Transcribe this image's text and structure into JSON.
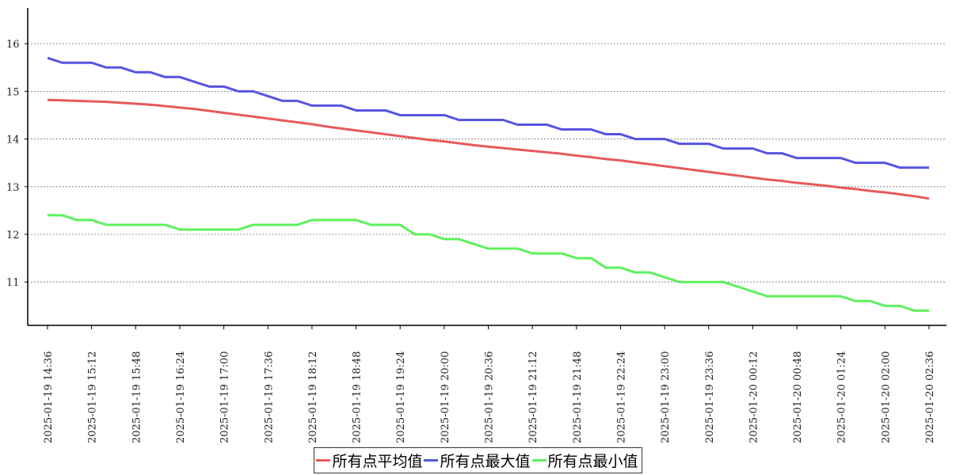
{
  "chart_data": {
    "type": "line",
    "x": [
      "2025-01-19 14:36",
      "2025-01-19 14:48",
      "2025-01-19 15:00",
      "2025-01-19 15:12",
      "2025-01-19 15:24",
      "2025-01-19 15:36",
      "2025-01-19 15:48",
      "2025-01-19 16:00",
      "2025-01-19 16:12",
      "2025-01-19 16:24",
      "2025-01-19 16:36",
      "2025-01-19 16:48",
      "2025-01-19 17:00",
      "2025-01-19 17:12",
      "2025-01-19 17:24",
      "2025-01-19 17:36",
      "2025-01-19 17:48",
      "2025-01-19 18:00",
      "2025-01-19 18:12",
      "2025-01-19 18:24",
      "2025-01-19 18:36",
      "2025-01-19 18:48",
      "2025-01-19 19:00",
      "2025-01-19 19:12",
      "2025-01-19 19:24",
      "2025-01-19 19:36",
      "2025-01-19 19:48",
      "2025-01-19 20:00",
      "2025-01-19 20:12",
      "2025-01-19 20:24",
      "2025-01-19 20:36",
      "2025-01-19 20:48",
      "2025-01-19 21:00",
      "2025-01-19 21:12",
      "2025-01-19 21:24",
      "2025-01-19 21:36",
      "2025-01-19 21:48",
      "2025-01-19 22:00",
      "2025-01-19 22:12",
      "2025-01-19 22:24",
      "2025-01-19 22:36",
      "2025-01-19 22:48",
      "2025-01-19 23:00",
      "2025-01-19 23:12",
      "2025-01-19 23:24",
      "2025-01-19 23:36",
      "2025-01-19 23:48",
      "2025-01-20 00:00",
      "2025-01-20 00:12",
      "2025-01-20 00:24",
      "2025-01-20 00:36",
      "2025-01-20 00:48",
      "2025-01-20 01:00",
      "2025-01-20 01:12",
      "2025-01-20 01:24",
      "2025-01-20 01:36",
      "2025-01-20 01:48",
      "2025-01-20 02:00",
      "2025-01-20 02:12",
      "2025-01-20 02:24",
      "2025-01-20 02:36"
    ],
    "series": [
      {
        "name": "所有点平均值",
        "color": "#e8595a",
        "values": [
          14.82,
          14.81,
          14.8,
          14.79,
          14.78,
          14.76,
          14.74,
          14.72,
          14.69,
          14.66,
          14.63,
          14.59,
          14.55,
          14.51,
          14.47,
          14.43,
          14.39,
          14.35,
          14.31,
          14.26,
          14.22,
          14.18,
          14.14,
          14.1,
          14.06,
          14.02,
          13.98,
          13.95,
          13.91,
          13.87,
          13.84,
          13.81,
          13.78,
          13.75,
          13.72,
          13.69,
          13.65,
          13.62,
          13.58,
          13.55,
          13.51,
          13.47,
          13.43,
          13.39,
          13.35,
          13.31,
          13.27,
          13.23,
          13.19,
          13.15,
          13.12,
          13.08,
          13.05,
          13.02,
          12.98,
          12.95,
          12.91,
          12.88,
          12.84,
          12.8,
          12.75
        ]
      },
      {
        "name": "所有点最大值",
        "color": "#5555e0",
        "values": [
          15.7,
          15.6,
          15.6,
          15.6,
          15.5,
          15.5,
          15.4,
          15.4,
          15.3,
          15.3,
          15.2,
          15.1,
          15.1,
          15.0,
          15.0,
          14.9,
          14.8,
          14.8,
          14.7,
          14.7,
          14.7,
          14.6,
          14.6,
          14.6,
          14.5,
          14.5,
          14.5,
          14.5,
          14.4,
          14.4,
          14.4,
          14.4,
          14.3,
          14.3,
          14.3,
          14.2,
          14.2,
          14.2,
          14.1,
          14.1,
          14.0,
          14.0,
          14.0,
          13.9,
          13.9,
          13.9,
          13.8,
          13.8,
          13.8,
          13.7,
          13.7,
          13.6,
          13.6,
          13.6,
          13.6,
          13.5,
          13.5,
          13.5,
          13.4,
          13.4,
          13.4
        ]
      },
      {
        "name": "所有点最小值",
        "color": "#5ef05e",
        "values": [
          12.4,
          12.4,
          12.3,
          12.3,
          12.2,
          12.2,
          12.2,
          12.2,
          12.2,
          12.1,
          12.1,
          12.1,
          12.1,
          12.1,
          12.2,
          12.2,
          12.2,
          12.2,
          12.3,
          12.3,
          12.3,
          12.3,
          12.2,
          12.2,
          12.2,
          12.0,
          12.0,
          11.9,
          11.9,
          11.8,
          11.7,
          11.7,
          11.7,
          11.6,
          11.6,
          11.6,
          11.5,
          11.5,
          11.3,
          11.3,
          11.2,
          11.2,
          11.1,
          11.0,
          11.0,
          11.0,
          11.0,
          10.9,
          10.8,
          10.7,
          10.7,
          10.7,
          10.7,
          10.7,
          10.7,
          10.6,
          10.6,
          10.5,
          10.5,
          10.4,
          10.4
        ]
      }
    ],
    "xlim": [
      "2025-01-19 14:36",
      "2025-01-20 02:36"
    ],
    "xticks": [
      "2025-01-19 14:36",
      "2025-01-19 15:12",
      "2025-01-19 15:48",
      "2025-01-19 16:24",
      "2025-01-19 17:00",
      "2025-01-19 17:36",
      "2025-01-19 18:12",
      "2025-01-19 18:48",
      "2025-01-19 19:24",
      "2025-01-19 20:00",
      "2025-01-19 20:36",
      "2025-01-19 21:12",
      "2025-01-19 21:48",
      "2025-01-19 22:24",
      "2025-01-19 23:00",
      "2025-01-19 23:36",
      "2025-01-20 00:12",
      "2025-01-20 00:48",
      "2025-01-20 01:24",
      "2025-01-20 02:00",
      "2025-01-20 02:36"
    ],
    "ylim": [
      10.09,
      16.75
    ],
    "yticks": [
      11,
      12,
      13,
      14,
      15,
      16
    ],
    "grid": true
  }
}
